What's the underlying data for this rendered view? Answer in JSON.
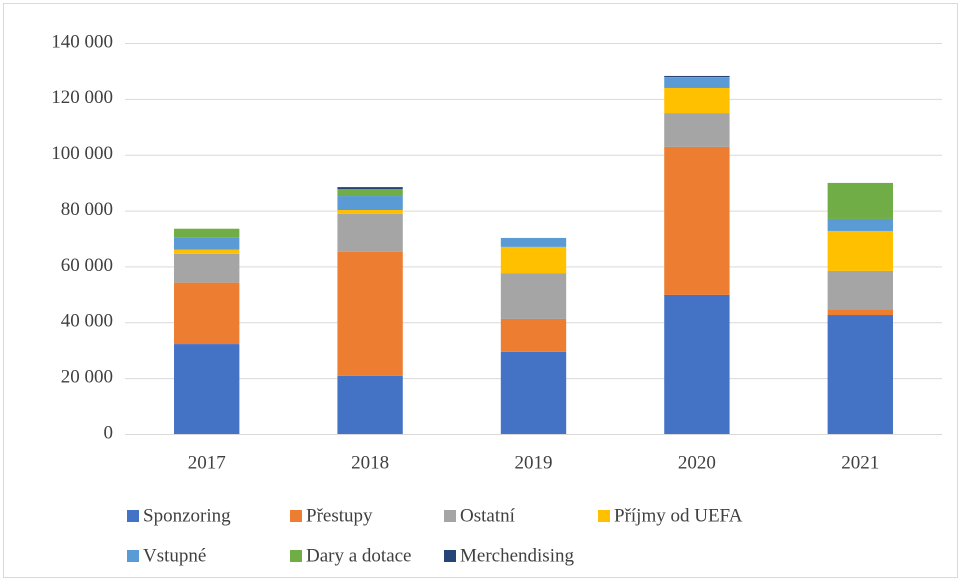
{
  "chart_data": {
    "type": "stacked_bar",
    "categories": [
      "2017",
      "2018",
      "2019",
      "2020",
      "2021"
    ],
    "series": [
      {
        "name": "Sponzoring",
        "color": "#4472c4",
        "values": [
          32200,
          20800,
          29400,
          49800,
          42600
        ]
      },
      {
        "name": "Přestupy",
        "color": "#ed7d31",
        "values": [
          22000,
          44400,
          11800,
          53000,
          1800
        ]
      },
      {
        "name": "Ostatní",
        "color": "#a5a5a5",
        "values": [
          10300,
          13600,
          16400,
          12100,
          14000
        ]
      },
      {
        "name": "Příjmy od UEFA",
        "color": "#ffc000",
        "values": [
          1500,
          1400,
          9400,
          9000,
          14300
        ]
      },
      {
        "name": "Vstupné",
        "color": "#5b9bd5",
        "values": [
          4300,
          5000,
          3200,
          3600,
          4300
        ]
      },
      {
        "name": "Dary a dotace",
        "color": "#70ad47",
        "values": [
          3200,
          2500,
          0,
          300,
          12900
        ]
      },
      {
        "name": "Merchendising",
        "color": "#264478",
        "values": [
          0,
          700,
          0,
          400,
          0
        ]
      }
    ],
    "ylim": [
      0,
      140000
    ],
    "yticks": [
      0,
      {
        "value": 20000,
        "label": "20 000"
      },
      {
        "value": 40000,
        "label": "40 000"
      },
      {
        "value": 60000,
        "label": "60 000"
      },
      {
        "value": 80000,
        "label": "80 000"
      },
      {
        "value": 100000,
        "label": "100 000"
      },
      {
        "value": 120000,
        "label": "120 000"
      },
      {
        "value": 140000,
        "label": "140 000"
      }
    ],
    "grid": true,
    "legend": "bottom"
  }
}
